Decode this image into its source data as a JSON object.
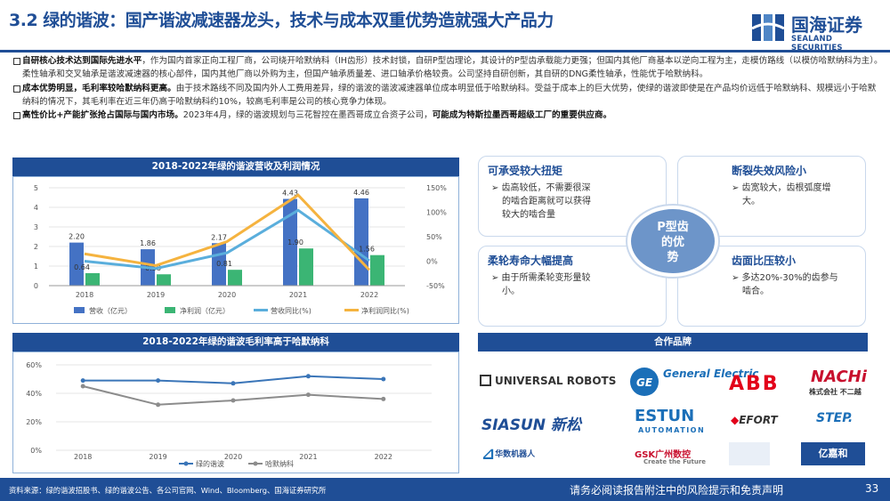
{
  "title": "3.2 绿的谐波：国产谐波减速器龙头，技术与成本双重优势造就强大产品力",
  "logo": {
    "name": "国海证券",
    "en": "SEALAND SECURITIES",
    "mark_icon": "sealand-logo-icon"
  },
  "bullets": [
    {
      "lead": "自研核心技术达到国际先进水平",
      "text1": "，作为国内首家正向工程厂商，公司绕开哈默纳科（IH齿形）技术封锁，自研P型齿理论，其设计的P型齿承载能力更强；但国内其他厂商基本以逆向工程为主，走模仿路线（以模仿哈默纳科为主）。柔性轴承和交叉轴承是谐波减速器的核心部件，国内其他厂商以外购为主，但国产轴承质量差、进口轴承价格较贵。公司坚持自研创新，其自研的DNG柔性轴承，性能优于哈默纳科。"
    },
    {
      "lead": "成本优势明显，毛利率较哈默纳科更高。",
      "text1": "由于技术路线不同及国内外人工费用差异，绿的谐波的谐波减速器单位成本明显低于哈默纳科。受益于成本上的巨大优势，使绿的谐波即使是在产品均价远低于哈默纳科、规模远小于哈默纳科的情况下，其毛利率在近三年仍高于哈默纳科约10%，较高毛利率是公司的核心竞争力体现。"
    },
    {
      "lead": "高性价比+产能扩张抢占国际与国内市场。",
      "text1": "2023年4月，绿的谐波规划与三花智控在墨西哥成立合资子公司，",
      "emph": "可能成为特斯拉墨西哥超级工厂的重要供应商。"
    }
  ],
  "chart1": {
    "title": "2018-2022年绿的谐波营收及利润情况",
    "type": "bar",
    "categories": [
      "2018",
      "2019",
      "2020",
      "2021",
      "2022"
    ],
    "series": [
      {
        "name": "营收（亿元）",
        "kind": "bar",
        "axis": "left",
        "color": "#4472c4",
        "values": [
          2.2,
          1.86,
          2.17,
          4.43,
          4.46
        ]
      },
      {
        "name": "净利润（亿元）",
        "kind": "bar",
        "axis": "left",
        "color": "#3bb574",
        "values": [
          0.64,
          0.58,
          0.81,
          1.9,
          1.56
        ]
      },
      {
        "name": "营收同比(%)",
        "kind": "line",
        "axis": "right",
        "color": "#5aaedc",
        "values": [
          0,
          -15,
          17,
          104,
          1
        ]
      },
      {
        "name": "净利润同比(%)",
        "kind": "line",
        "axis": "right",
        "color": "#f5b33f",
        "values": [
          15,
          -9,
          40,
          135,
          -18
        ]
      }
    ],
    "value_labels": {
      "revenue": [
        "2.20",
        "1.86",
        "2.17",
        "4.43",
        "4.46"
      ],
      "profit": [
        "0.64",
        "0.58",
        "0.81",
        "1.90",
        "1.56"
      ]
    },
    "ylim": [
      0,
      5
    ],
    "y2lim": [
      -50,
      150
    ],
    "yticks": [
      "0",
      "1",
      "2",
      "3",
      "4",
      "5"
    ],
    "y2ticks": [
      "-50%",
      "0%",
      "50%",
      "100%",
      "150%"
    ]
  },
  "chart2": {
    "title": "2018-2022年绿的谐波毛利率高于哈默纳科",
    "type": "line",
    "categories": [
      "2018",
      "2019",
      "2020",
      "2021",
      "2022"
    ],
    "series": [
      {
        "name": "绿的谐波",
        "color": "#3a75b8",
        "values": [
          49,
          49,
          47,
          52,
          50
        ]
      },
      {
        "name": "哈默纳科",
        "color": "#8c8c8c",
        "values": [
          45,
          32,
          35,
          39,
          36
        ]
      }
    ],
    "ylim": [
      0,
      60
    ],
    "yticks": [
      "0%",
      "20%",
      "40%",
      "60%"
    ]
  },
  "advantages": {
    "center": [
      "P型齿",
      "的优",
      "势"
    ],
    "items": [
      {
        "title": "可承受较大扭矩",
        "lines": [
          "➢ 齿高较低，不需要很深",
          "的啮合距离就可以获得",
          "较大的啮合量"
        ]
      },
      {
        "title": "断裂失效风险小",
        "lines": [
          "➢ 齿宽较大，齿根弧度增",
          "大。"
        ]
      },
      {
        "title": "柔轮寿命大幅提高",
        "lines": [
          "➢ 由于所需柔轮变形量较",
          "小。"
        ]
      },
      {
        "title": "齿面比压较小",
        "lines": [
          "➢ 多达20%-30%的齿参与",
          "啮合。"
        ]
      }
    ]
  },
  "partners": {
    "title": "合作品牌",
    "brands": [
      "UNIVERSAL ROBOTS",
      "General Electric",
      "ABB",
      "NACHi",
      "株式会社 不二越",
      "SIASUN 新松",
      "ESTUN",
      "AUTOMATION",
      "EFORT",
      "STEP.",
      "华数机器人",
      "GSK广州数控",
      "Create the Future",
      "亿嘉和"
    ]
  },
  "footer": {
    "source": "资料来源：绿的谐波招股书、绿的谐波公告、各公司官网、Wind、Bloomberg、国海证券研究所",
    "disclaimer": "请务必阅读报告附注中的风险提示和免责声明",
    "page": "33"
  }
}
